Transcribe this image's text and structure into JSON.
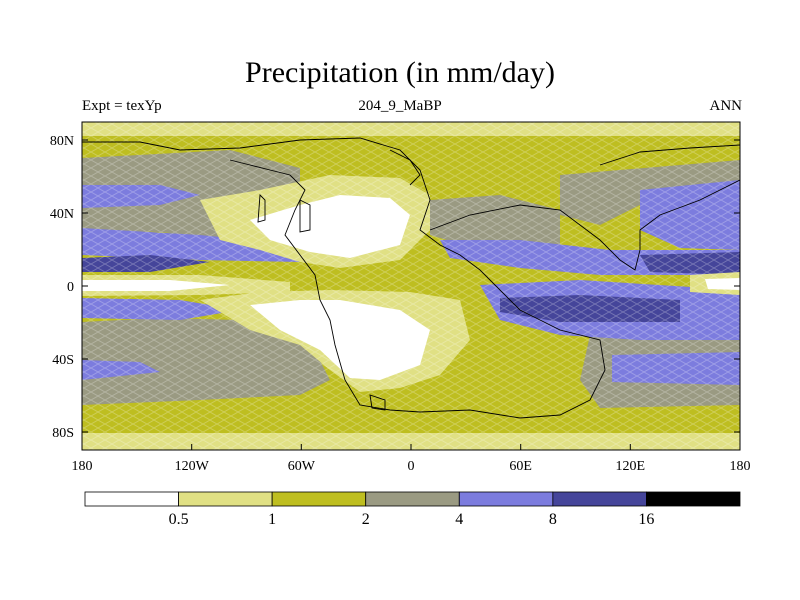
{
  "title": "Precipitation (in mm/day)",
  "subtitle_left": "Expt = texYp",
  "subtitle_center": "204_9_MaBP",
  "subtitle_right": "ANN",
  "lat_ticks": [
    "80N",
    "40N",
    "0",
    "40S",
    "80S"
  ],
  "lon_ticks": [
    "180",
    "120W",
    "60W",
    "0",
    "60E",
    "120E",
    "180"
  ],
  "colorbar": {
    "levels": [
      "0.5",
      "1",
      "2",
      "4",
      "8",
      "16"
    ],
    "colors": [
      "#ffffff",
      "#e0e084",
      "#bebe20",
      "#9a9a82",
      "#7c7cde",
      "#45459a",
      "#000000"
    ]
  }
}
